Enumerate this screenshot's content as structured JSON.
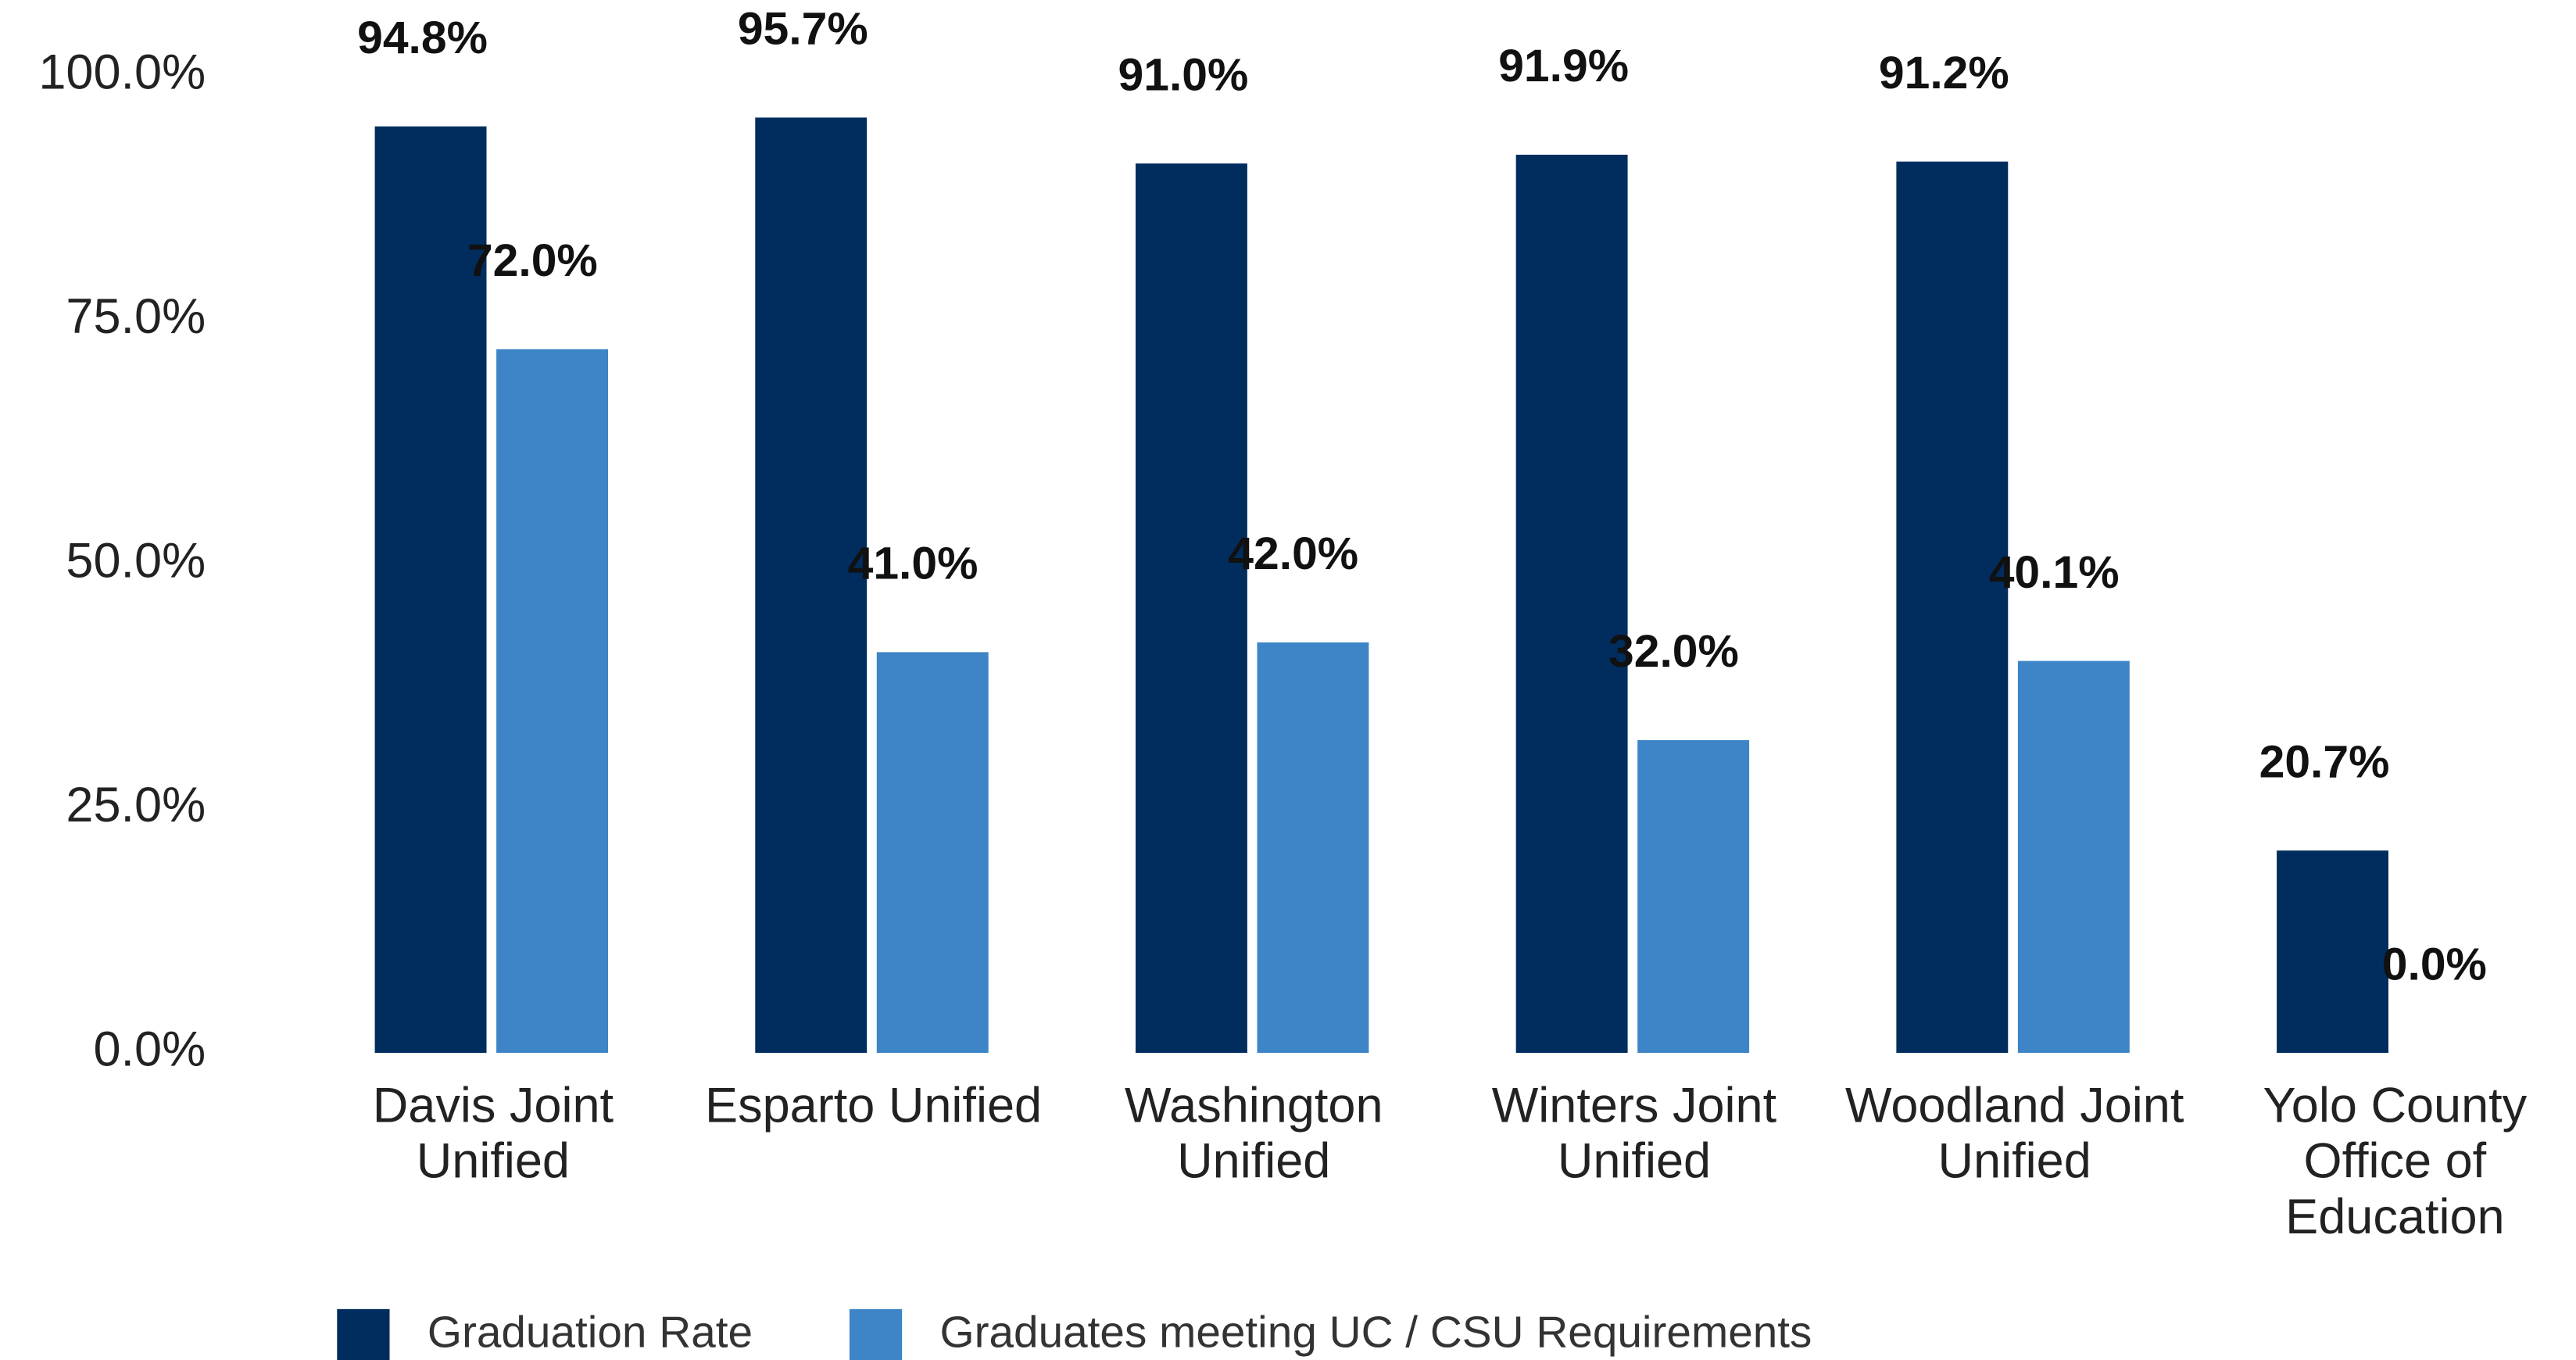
{
  "chart_data": {
    "type": "bar",
    "categories": [
      "Davis Joint Unified",
      "Esparto Unified",
      "Washington Unified",
      "Winters Joint Unified",
      "Woodland Joint Unified",
      "Yolo County Office of Education"
    ],
    "series": [
      {
        "name": "Graduation Rate",
        "color": "#002d5e",
        "values": [
          94.8,
          95.7,
          91.0,
          91.9,
          91.2,
          20.7
        ],
        "value_labels": [
          "94.8%",
          "95.7%",
          "91.0%",
          "91.9%",
          "91.2%",
          "20.7%"
        ]
      },
      {
        "name": "Graduates meeting UC / CSU Requirements",
        "color": "#3d85c6",
        "values": [
          72.0,
          41.0,
          42.0,
          32.0,
          40.1,
          0.0
        ],
        "value_labels": [
          "72.0%",
          "41.0%",
          "42.0%",
          "32.0%",
          "40.1%",
          "0.0%"
        ]
      }
    ],
    "ylim": [
      0,
      100
    ],
    "yticks": [
      {
        "value": 0,
        "label": "0.0%"
      },
      {
        "value": 25,
        "label": "25.0%"
      },
      {
        "value": 50,
        "label": "50.0%"
      },
      {
        "value": 75,
        "label": "75.0%"
      },
      {
        "value": 100,
        "label": "100.0%"
      }
    ],
    "grid": false,
    "legend": "bottom"
  }
}
